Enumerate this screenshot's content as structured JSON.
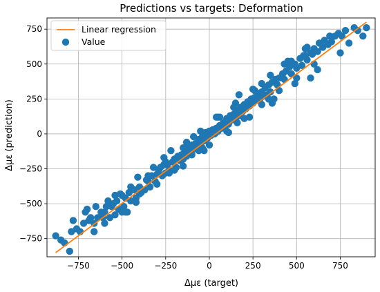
{
  "chart_data": {
    "type": "scatter",
    "title": "Predictions vs targets: Deformation",
    "xlabel": "Δμε (target)",
    "ylabel": "Δμε (prediction)",
    "xlim": [
      -930,
      950
    ],
    "ylim": [
      -880,
      830
    ],
    "xticks": [
      -750,
      -500,
      -250,
      0,
      250,
      500,
      750
    ],
    "yticks": [
      -750,
      -500,
      -250,
      0,
      250,
      500,
      750
    ],
    "grid": true,
    "legend_position": "top-left",
    "series": [
      {
        "name": "Linear regression",
        "kind": "line",
        "color": "#ff7f0e",
        "x": [
          -880,
          900
        ],
        "y": [
          -850,
          800
        ]
      },
      {
        "name": "Value",
        "kind": "scatter",
        "color": "#1f77b4",
        "x": [
          -880,
          -850,
          -830,
          -800,
          -790,
          -760,
          -740,
          -720,
          -700,
          -690,
          -680,
          -660,
          -640,
          -620,
          -610,
          -600,
          -590,
          -570,
          -560,
          -540,
          -530,
          -520,
          -500,
          -490,
          -480,
          -460,
          -450,
          -430,
          -420,
          -400,
          -390,
          -370,
          -360,
          -340,
          -330,
          -310,
          -300,
          -290,
          -270,
          -260,
          -250,
          -240,
          -230,
          -210,
          -200,
          -190,
          -180,
          -170,
          -160,
          -150,
          -140,
          -130,
          -120,
          -110,
          -100,
          -90,
          -80,
          -70,
          -60,
          -50,
          -40,
          -30,
          -20,
          -10,
          0,
          10,
          20,
          30,
          40,
          50,
          60,
          70,
          80,
          90,
          100,
          110,
          120,
          130,
          140,
          150,
          160,
          170,
          180,
          190,
          200,
          210,
          220,
          230,
          240,
          250,
          260,
          270,
          280,
          290,
          300,
          310,
          320,
          330,
          340,
          350,
          360,
          380,
          390,
          400,
          420,
          430,
          440,
          460,
          470,
          490,
          500,
          520,
          530,
          550,
          560,
          580,
          590,
          600,
          620,
          630,
          650,
          660,
          680,
          700,
          720,
          740,
          760,
          780,
          800,
          830,
          850,
          880,
          900,
          -780,
          -710,
          -650,
          -580,
          -510,
          -470,
          -410,
          -350,
          -280,
          -220,
          -150,
          -90,
          -30,
          40,
          110,
          170,
          230,
          300,
          360,
          430,
          490,
          560,
          620,
          690,
          750,
          -600,
          -550,
          -500,
          -450,
          -400,
          -350,
          -300,
          -250,
          -200,
          -150,
          -100,
          -50,
          0,
          50,
          100,
          150,
          200,
          250,
          300,
          350,
          400,
          450,
          500,
          550,
          600,
          -660,
          -540,
          -420,
          -320,
          -230,
          -130,
          -40,
          60,
          160,
          260,
          370,
          470,
          580,
          -700,
          -480,
          -260,
          -60,
          140,
          340,
          540
        ],
        "y": [
          -730,
          -760,
          -780,
          -840,
          -700,
          -680,
          -700,
          -640,
          -540,
          -620,
          -600,
          -640,
          -600,
          -560,
          -600,
          -560,
          -520,
          -600,
          -520,
          -580,
          -480,
          -540,
          -440,
          -520,
          -460,
          -420,
          -480,
          -400,
          -460,
          -380,
          -420,
          -400,
          -330,
          -380,
          -300,
          -340,
          -290,
          -260,
          -300,
          -220,
          -280,
          -220,
          -260,
          -200,
          -180,
          -240,
          -160,
          -190,
          -150,
          -180,
          -120,
          -160,
          -100,
          -130,
          -80,
          -110,
          -70,
          -90,
          -40,
          -70,
          -20,
          -50,
          10,
          -30,
          20,
          -10,
          30,
          0,
          40,
          20,
          60,
          40,
          80,
          60,
          110,
          70,
          130,
          100,
          140,
          110,
          170,
          130,
          190,
          160,
          210,
          180,
          230,
          200,
          250,
          220,
          260,
          240,
          290,
          250,
          300,
          270,
          330,
          280,
          350,
          300,
          370,
          390,
          350,
          400,
          430,
          390,
          450,
          480,
          430,
          500,
          470,
          540,
          490,
          560,
          530,
          580,
          570,
          610,
          590,
          650,
          620,
          670,
          640,
          660,
          700,
          720,
          700,
          740,
          650,
          760,
          740,
          700,
          760,
          -620,
          -560,
          -520,
          -480,
          -430,
          -560,
          -310,
          -340,
          -240,
          -120,
          -230,
          -20,
          -120,
          120,
          10,
          280,
          120,
          360,
          220,
          500,
          360,
          620,
          460,
          700,
          580,
          -640,
          -500,
          -560,
          -380,
          -430,
          -300,
          -360,
          -200,
          -260,
          -100,
          -150,
          20,
          -80,
          120,
          20,
          220,
          110,
          320,
          210,
          420,
          310,
          520,
          400,
          610,
          500,
          -700,
          -440,
          -490,
          -240,
          -280,
          -60,
          -100,
          120,
          80,
          310,
          250,
          520,
          400,
          -540,
          -560,
          -170,
          -120,
          190,
          250,
          560
        ]
      }
    ]
  }
}
